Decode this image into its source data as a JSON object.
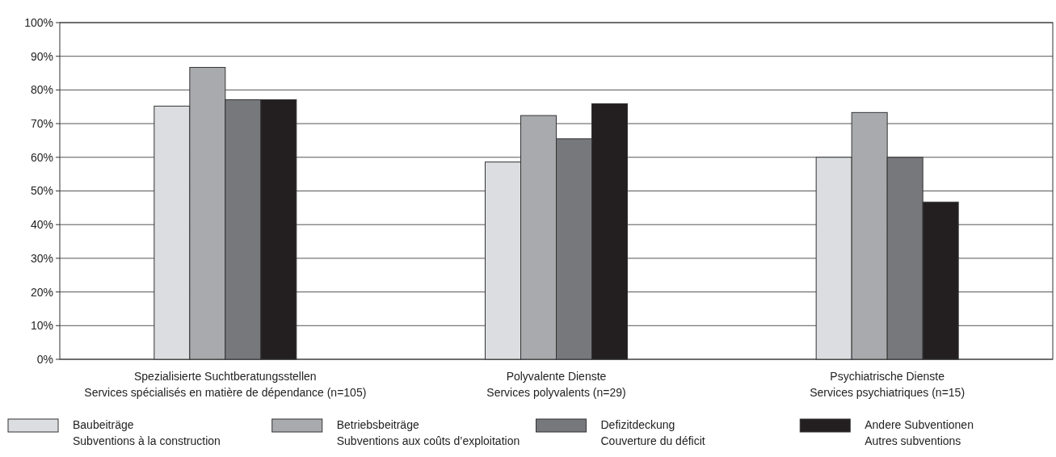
{
  "chart_data": {
    "type": "bar",
    "categories": [
      "Spezialisierte Suchtberatungsstellen\nServices spécialisés en matière de dépendance (n=105)",
      "Polyvalente Dienste\nServices polyvalents (n=29)",
      "Psychiatrische Dienste\nServices psychiatriques (n=15)"
    ],
    "series": [
      {
        "name": "Baubeiträge\nSubventions à la construction",
        "color": "#dcdde0",
        "values": [
          75.2,
          58.6,
          60
        ]
      },
      {
        "name": "Betriebsbeiträge\nSubventions aux coûts d’exploitation",
        "color": "#a9aaad",
        "values": [
          86.7,
          72.4,
          73.3
        ]
      },
      {
        "name": "Defizitdeckung\nCouverture du déficit",
        "color": "#77787c",
        "values": [
          77.1,
          65.5,
          60
        ]
      },
      {
        "name": "Andere Subventionen\nAutres subventions",
        "color": "#231f20",
        "values": [
          77.1,
          75.9,
          46.7
        ]
      }
    ],
    "ylim": [
      0,
      100
    ],
    "yticks": [
      {
        "value": 0,
        "label": "0%"
      },
      {
        "value": 10,
        "label": "10%"
      },
      {
        "value": 20,
        "label": "20%"
      },
      {
        "value": 30,
        "label": "30%"
      },
      {
        "value": 40,
        "label": "40%"
      },
      {
        "value": 50,
        "label": "50%"
      },
      {
        "value": 60,
        "label": "60%"
      },
      {
        "value": 70,
        "label": "70%"
      },
      {
        "value": 80,
        "label": "80%"
      },
      {
        "value": 90,
        "label": "90%"
      },
      {
        "value": 100,
        "label": "100%"
      }
    ],
    "grid": "y",
    "legend": "bottom"
  }
}
